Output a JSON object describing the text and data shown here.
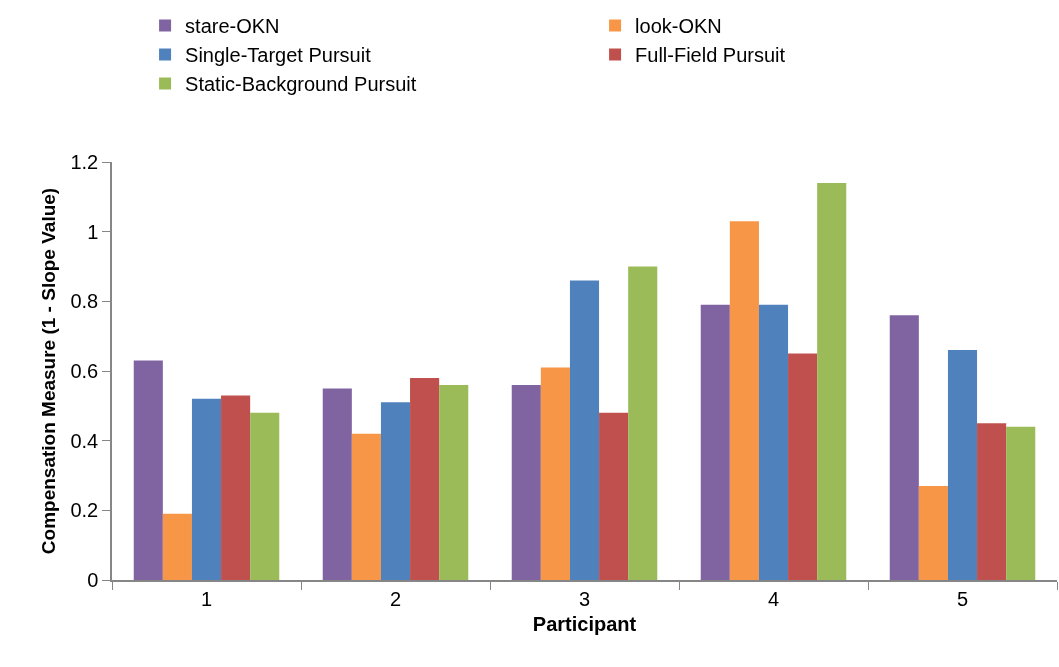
{
  "chart_data": {
    "type": "bar",
    "xlabel": "Participant",
    "ylabel": "Compensation Measure (1 - Slope Value)",
    "categories": [
      "1",
      "2",
      "3",
      "4",
      "5"
    ],
    "series": [
      {
        "name": "stare-OKN",
        "color": "#8064a2",
        "values": [
          0.63,
          0.55,
          0.56,
          0.79,
          0.76
        ]
      },
      {
        "name": "look-OKN",
        "color": "#f79646",
        "values": [
          0.19,
          0.42,
          0.61,
          1.03,
          0.27
        ]
      },
      {
        "name": "Single-Target Pursuit",
        "color": "#4f81bd",
        "values": [
          0.52,
          0.51,
          0.86,
          0.79,
          0.66
        ]
      },
      {
        "name": "Full-Field Pursuit",
        "color": "#c0504d",
        "values": [
          0.53,
          0.58,
          0.48,
          0.65,
          0.45
        ]
      },
      {
        "name": "Static-Background Pursuit",
        "color": "#9bbb59",
        "values": [
          0.48,
          0.56,
          0.9,
          1.14,
          0.44
        ]
      }
    ],
    "ylim": [
      0,
      1.2
    ],
    "yticks": [
      0,
      0.2,
      0.4,
      0.6,
      0.8,
      1,
      1.2
    ],
    "legend": "top"
  }
}
